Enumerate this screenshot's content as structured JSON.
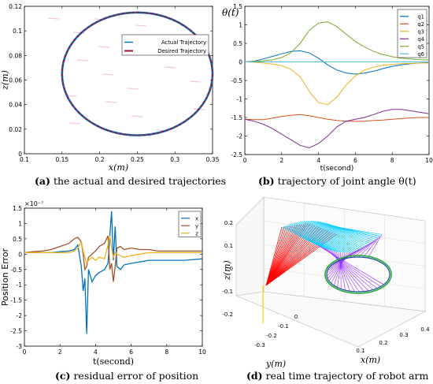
{
  "captions": {
    "a": {
      "tag": "(a)",
      "text": "the actual and desired trajectories"
    },
    "b": {
      "tag": "(b)",
      "text": "trajectory of joint angle θ(t)"
    },
    "c": {
      "tag": "(c)",
      "text": "residual error of position"
    },
    "d": {
      "tag": "(d)",
      "text": "real time trajectory of robot arm"
    }
  },
  "colors": {
    "blue": "#0072BD",
    "red": "#A2142F",
    "orange": "#D95319",
    "yellow": "#EDB120",
    "purple": "#7E2F8E",
    "green": "#77AC30",
    "lightblue": "#4DBEEE",
    "brown": "#8B5A2B"
  },
  "chart_data": [
    {
      "id": "a",
      "type": "line",
      "xlabel": "x(m)",
      "ylabel": "z(m)",
      "xlim": [
        0.1,
        0.35
      ],
      "ylim": [
        0,
        0.12
      ],
      "xticks": [
        "0.1",
        "0.15",
        "0.2",
        "0.25",
        "0.3",
        "0.35"
      ],
      "yticks": [
        "0",
        "0.02",
        "0.04",
        "0.06",
        "0.08",
        "0.1",
        "0.12"
      ],
      "legend_position": "upper-right",
      "series": [
        {
          "name": "Actual Trajectory",
          "color": "#0072BD",
          "shape": "ellipse",
          "center": [
            0.25,
            0.065
          ],
          "radii": [
            0.1,
            0.05
          ]
        },
        {
          "name": "Desired Trajectory",
          "color": "#A2142F",
          "shape": "ellipse",
          "center": [
            0.25,
            0.065
          ],
          "radii": [
            0.1,
            0.05
          ]
        }
      ]
    },
    {
      "id": "b",
      "type": "line",
      "title": "θ(t)",
      "xlabel": "t(second)",
      "xlim": [
        0,
        10
      ],
      "ylim": [
        -2.5,
        1.5
      ],
      "xticks": [
        "0",
        "2",
        "4",
        "6",
        "8",
        "10"
      ],
      "yticks": [
        "-2.5",
        "-2",
        "-1.5",
        "-1",
        "-0.5",
        "0",
        "0.5",
        "1",
        "1.5"
      ],
      "legend_position": "upper-right",
      "x": [
        0,
        0.5,
        1,
        1.5,
        2,
        2.5,
        3,
        3.5,
        4,
        4.5,
        5,
        5.5,
        6,
        6.5,
        7,
        7.5,
        8,
        8.5,
        9,
        9.5,
        10
      ],
      "series": [
        {
          "name": "q1",
          "color": "#0072BD",
          "values": [
            0,
            0.02,
            0.08,
            0.15,
            0.22,
            0.28,
            0.3,
            0.24,
            0.1,
            -0.08,
            -0.22,
            -0.3,
            -0.33,
            -0.3,
            -0.25,
            -0.18,
            -0.12,
            -0.08,
            -0.05,
            -0.03,
            -0.02
          ]
        },
        {
          "name": "q2",
          "color": "#D95319",
          "values": [
            -1.55,
            -1.56,
            -1.56,
            -1.52,
            -1.47,
            -1.44,
            -1.42,
            -1.45,
            -1.5,
            -1.55,
            -1.58,
            -1.6,
            -1.6,
            -1.6,
            -1.58,
            -1.57,
            -1.55,
            -1.53,
            -1.51,
            -1.5,
            -1.5
          ]
        },
        {
          "name": "q3",
          "color": "#EDB120",
          "values": [
            0,
            -0.01,
            -0.03,
            -0.06,
            -0.1,
            -0.2,
            -0.4,
            -0.8,
            -1.1,
            -1.15,
            -0.95,
            -0.62,
            -0.38,
            -0.22,
            -0.14,
            -0.09,
            -0.07,
            -0.05,
            -0.04,
            -0.03,
            -0.03
          ]
        },
        {
          "name": "q4",
          "color": "#7E2F8E",
          "values": [
            -1.55,
            -1.6,
            -1.68,
            -1.8,
            -1.95,
            -2.1,
            -2.25,
            -2.32,
            -2.2,
            -2.0,
            -1.75,
            -1.6,
            -1.55,
            -1.5,
            -1.42,
            -1.33,
            -1.28,
            -1.28,
            -1.32,
            -1.36,
            -1.4
          ]
        },
        {
          "name": "q5",
          "color": "#77AC30",
          "values": [
            0,
            0.01,
            0.03,
            0.06,
            0.12,
            0.25,
            0.5,
            0.85,
            1.05,
            1.08,
            0.95,
            0.75,
            0.55,
            0.4,
            0.28,
            0.2,
            0.14,
            0.1,
            0.08,
            0.06,
            0.05
          ]
        },
        {
          "name": "q6",
          "color": "#4DBEEE",
          "values": [
            0,
            0,
            0,
            0,
            0,
            0,
            0,
            0,
            0,
            0,
            0,
            0,
            0,
            0,
            0,
            0,
            0,
            0,
            0,
            0,
            0
          ]
        }
      ]
    },
    {
      "id": "c",
      "type": "line",
      "ylabel": "Position Error",
      "xlabel": "t(second)",
      "multiplier": "×10⁻⁷",
      "xlim": [
        0,
        10
      ],
      "ylim": [
        -3,
        1.5
      ],
      "xticks": [
        "0",
        "2",
        "4",
        "6",
        "8",
        "10"
      ],
      "yticks": [
        "-3",
        "-2.5",
        "-2",
        "-1.5",
        "-1",
        "-0.5",
        "0",
        "0.5",
        "1",
        "1.5"
      ],
      "legend_position": "upper-right",
      "x": [
        0,
        0.5,
        1,
        1.5,
        2,
        2.5,
        2.8,
        3.0,
        3.2,
        3.3,
        3.4,
        3.5,
        3.6,
        3.8,
        4.0,
        4.2,
        4.5,
        4.7,
        4.8,
        4.9,
        5.0,
        5.1,
        5.2,
        5.4,
        5.6,
        6,
        6.5,
        7,
        7.5,
        8,
        9,
        10
      ],
      "series": [
        {
          "name": "x",
          "color": "#0072BD",
          "values": [
            0.05,
            0.05,
            0.05,
            0.05,
            0.08,
            0.1,
            0.15,
            0.3,
            -0.4,
            -1.2,
            -0.8,
            -2.6,
            -0.5,
            -0.9,
            -0.7,
            -0.6,
            -0.5,
            -0.3,
            0.6,
            1.4,
            -0.2,
            0.9,
            -0.4,
            -0.5,
            -0.35,
            -0.3,
            -0.25,
            -0.2,
            -0.2,
            -0.2,
            -0.2,
            -0.15
          ]
        },
        {
          "name": "y",
          "color": "#A0522D",
          "values": [
            0.05,
            0.08,
            0.1,
            0.15,
            0.25,
            0.35,
            0.5,
            0.55,
            0.4,
            0.0,
            -0.5,
            -0.4,
            -0.1,
            0.0,
            0.1,
            0.25,
            0.35,
            0.6,
            -0.5,
            -0.3,
            -0.9,
            -0.4,
            0.2,
            0.25,
            0.15,
            0.2,
            0.15,
            0.15,
            0.1,
            0.1,
            0.1,
            0.1
          ]
        },
        {
          "name": "z",
          "color": "#EDB120",
          "values": [
            0.05,
            0.05,
            0.05,
            0.05,
            0.05,
            0.05,
            0.1,
            0.2,
            0.4,
            0.1,
            -0.1,
            -0.3,
            -0.2,
            -0.1,
            -0.2,
            -0.1,
            -0.15,
            0.3,
            0.6,
            0.2,
            -0.1,
            0.05,
            0.0,
            -0.05,
            -0.1,
            -0.05,
            0.0,
            0.05,
            0.05,
            0.05,
            0.05,
            0.05
          ]
        }
      ]
    },
    {
      "id": "d",
      "type": "3d-wireframe",
      "xlabel": "x(m)",
      "ylabel": "y(m)",
      "zlabel": "z(m)",
      "xticks": [
        "0.1",
        "0.2",
        "0.3",
        "0.4"
      ],
      "yticks": [
        "-0.3",
        "-0.2",
        "-0.1",
        "0"
      ],
      "zticks": [
        "-0.2",
        "-0.1",
        "0",
        "0.1",
        "0.2"
      ],
      "series": [
        {
          "name": "link-1",
          "color": "#FF0000"
        },
        {
          "name": "link-2",
          "color": "#00CCFF"
        },
        {
          "name": "link-3",
          "color": "#9933FF"
        },
        {
          "name": "end-effector-path",
          "color": "#22AA33"
        },
        {
          "name": "base",
          "color": "#FFD700"
        }
      ]
    }
  ]
}
